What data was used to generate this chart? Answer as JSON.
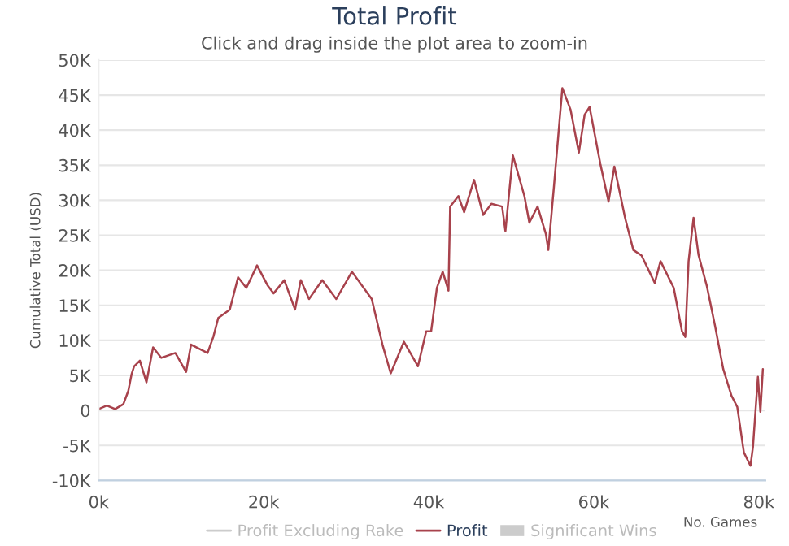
{
  "chart_data": {
    "type": "line",
    "title": "Total Profit",
    "subtitle": "Click and drag inside the plot area to zoom-in",
    "xlabel": "No. Games",
    "ylabel": "Cumulative Total (USD)",
    "x": [
      0,
      1000,
      2000,
      3000,
      3600,
      4000,
      4300,
      5000,
      5800,
      6600,
      7600,
      9300,
      10600,
      11200,
      13200,
      13900,
      14500,
      15900,
      16900,
      17900,
      19200,
      20500,
      21200,
      22500,
      23800,
      24500,
      25500,
      27100,
      28800,
      30700,
      33100,
      34400,
      35400,
      37000,
      38700,
      39700,
      40300,
      41000,
      41700,
      42400,
      42600,
      43600,
      44300,
      45500,
      46600,
      47600,
      48900,
      49300,
      50200,
      51600,
      52200,
      53200,
      54200,
      54500,
      55200,
      56200,
      57200,
      58200,
      58900,
      59500,
      60800,
      61800,
      62500,
      63800,
      64800,
      65800,
      67400,
      68100,
      69700,
      70700,
      71100,
      71500,
      72100,
      72700,
      73700,
      74700,
      75700,
      76700,
      77400,
      78200,
      79000,
      79300,
      79900,
      80200,
      80500
    ],
    "series": [
      {
        "name": "Profit Excluding Rake",
        "color": "#cccccc",
        "values": [
          null,
          null,
          null,
          null,
          null,
          null,
          null,
          null,
          null,
          null,
          null,
          null,
          null,
          null,
          null,
          null,
          null,
          null,
          null,
          null,
          null,
          null,
          null,
          null,
          null,
          null,
          null,
          null,
          null,
          null,
          null,
          null,
          null,
          null,
          null,
          null,
          null,
          null,
          null,
          null,
          null,
          null,
          null,
          null,
          null,
          null,
          null,
          null,
          null,
          null,
          null,
          null,
          null,
          null,
          null,
          null,
          null,
          null,
          null,
          null,
          null,
          null,
          null,
          null,
          null,
          null,
          null,
          null,
          null,
          null,
          null,
          null,
          null,
          null,
          null,
          null,
          null,
          null,
          null,
          null,
          null,
          null,
          null,
          null,
          null
        ]
      },
      {
        "name": "Profit",
        "color": "#a8424c",
        "values": [
          200,
          700,
          200,
          900,
          2800,
          5200,
          6300,
          7100,
          4000,
          9000,
          7500,
          8200,
          5500,
          9400,
          8200,
          10500,
          13200,
          14400,
          19000,
          17500,
          20700,
          17800,
          16700,
          18600,
          14400,
          18600,
          15900,
          18600,
          15900,
          19800,
          15900,
          9400,
          5300,
          9800,
          6300,
          11300,
          11300,
          17500,
          19800,
          17100,
          29100,
          30600,
          28300,
          32900,
          27900,
          29500,
          29100,
          25600,
          36400,
          30600,
          26800,
          29100,
          25200,
          22900,
          32200,
          46000,
          42900,
          36800,
          42200,
          43300,
          35200,
          29800,
          34800,
          27500,
          22900,
          22100,
          18200,
          21300,
          17500,
          11300,
          10500,
          21300,
          27500,
          22200,
          17800,
          12100,
          5900,
          2100,
          500,
          -6000,
          -7900,
          -5200,
          4800,
          -200,
          5900
        ]
      },
      {
        "name": "Significant Wins",
        "type": "area",
        "color": "#cccccc",
        "values": [
          null,
          null,
          null,
          null,
          null,
          null,
          null,
          null,
          null,
          null,
          null,
          null,
          null,
          null,
          null,
          null,
          null,
          null,
          null,
          null,
          null,
          null,
          null,
          null,
          null,
          null,
          null,
          null,
          null,
          null,
          null,
          null,
          null,
          null,
          null,
          null,
          null,
          null,
          null,
          null,
          null,
          null,
          null,
          null,
          null,
          null,
          null,
          null,
          null,
          null,
          null,
          null,
          null,
          null,
          null,
          null,
          null,
          null,
          null,
          null,
          null,
          null,
          null,
          null,
          null,
          null,
          null,
          null,
          null,
          null,
          null,
          null,
          null,
          null,
          null,
          null,
          null,
          null,
          null,
          null,
          null,
          null,
          null,
          null,
          null
        ]
      }
    ],
    "xlim": [
      0,
      80800
    ],
    "ylim": [
      -10000,
      50000
    ],
    "xticks": [
      {
        "value": 0,
        "label": "0k"
      },
      {
        "value": 20000,
        "label": "20k"
      },
      {
        "value": 40000,
        "label": "40k"
      },
      {
        "value": 60000,
        "label": "60k"
      },
      {
        "value": 80000,
        "label": "80k"
      }
    ],
    "yticks": [
      {
        "value": -10000,
        "label": "-10K"
      },
      {
        "value": -5000,
        "label": "-5K"
      },
      {
        "value": 0,
        "label": "0"
      },
      {
        "value": 5000,
        "label": "5K"
      },
      {
        "value": 10000,
        "label": "10K"
      },
      {
        "value": 15000,
        "label": "15K"
      },
      {
        "value": 20000,
        "label": "20K"
      },
      {
        "value": 25000,
        "label": "25K"
      },
      {
        "value": 30000,
        "label": "30K"
      },
      {
        "value": 35000,
        "label": "35K"
      },
      {
        "value": 40000,
        "label": "40K"
      },
      {
        "value": 45000,
        "label": "45K"
      },
      {
        "value": 50000,
        "label": "50K"
      }
    ],
    "grid": "y",
    "legend": "bottom",
    "marker": "none",
    "line_style": "solid"
  }
}
